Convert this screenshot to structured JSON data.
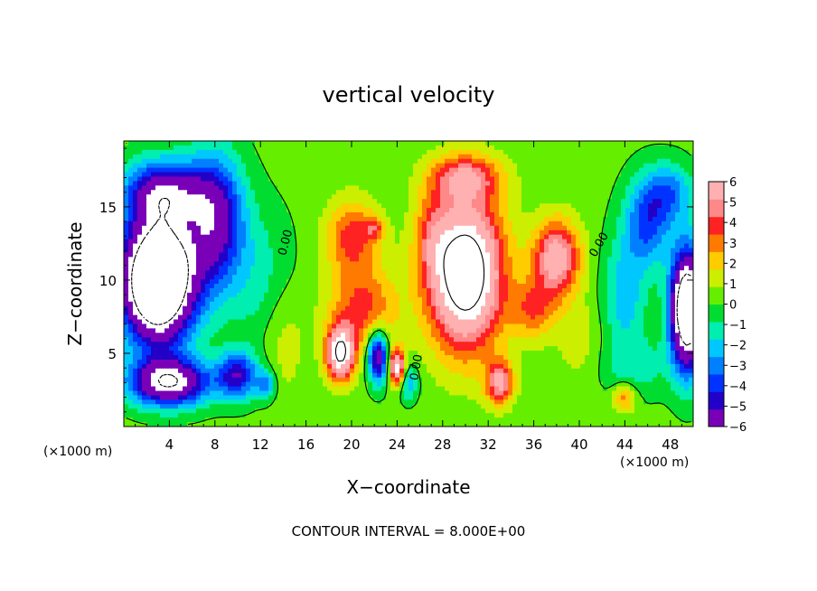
{
  "chart_data": {
    "type": "heatmap",
    "title": "vertical velocity",
    "xlabel": "X−coordinate",
    "ylabel": "Z−coordinate",
    "x_unit_left": "(×1000 m)",
    "x_unit_right": "(×1000 m)",
    "footer": "CONTOUR INTERVAL = 8.000E+00",
    "xlim": [
      0,
      50
    ],
    "ylim": [
      0,
      19.5
    ],
    "x_ticks": [
      4,
      8,
      12,
      16,
      20,
      24,
      28,
      32,
      36,
      40,
      44,
      48
    ],
    "x_tick_labels": [
      "4",
      "8",
      "12",
      "16",
      "20",
      "24",
      "28",
      "32",
      "36",
      "40",
      "44",
      "48"
    ],
    "y_ticks": [
      5,
      10,
      15
    ],
    "y_tick_labels": [
      "5",
      "10",
      "15"
    ],
    "colorbar": {
      "min": -6,
      "max": 6,
      "ticks": [
        6,
        5,
        4,
        3,
        2,
        1,
        0,
        -1,
        -2,
        -3,
        -4,
        -5,
        -6
      ],
      "tick_labels": [
        "6",
        "5",
        "4",
        "3",
        "2",
        "1",
        "0",
        "−1",
        "−2",
        "−3",
        "−4",
        "−5",
        "−6"
      ],
      "over_range_color": "#ffffff",
      "colors": [
        "#7a00b8",
        "#2200c8",
        "#0033ff",
        "#0080ff",
        "#00c8ff",
        "#00eeb0",
        "#00dd30",
        "#66ee00",
        "#ccee00",
        "#ffcc00",
        "#ff7a00",
        "#ff2222",
        "#ff8888",
        "#ffb0b0"
      ]
    },
    "background_value": 0.3,
    "features": [
      {
        "x": 3.5,
        "z": 16,
        "sx": 3.5,
        "sz": 2.2,
        "amp": -6
      },
      {
        "x": 3.0,
        "z": 10,
        "sx": 3.2,
        "sz": 4.2,
        "amp": -14
      },
      {
        "x": 8.0,
        "z": 14,
        "sx": 2.5,
        "sz": 4.5,
        "amp": -6
      },
      {
        "x": 4.0,
        "z": 3,
        "sx": 3.5,
        "sz": 1.6,
        "amp": -8
      },
      {
        "x": 10.0,
        "z": 3.5,
        "sx": 1.8,
        "sz": 1.6,
        "amp": -5
      },
      {
        "x": 12.5,
        "z": 2.8,
        "sx": 0.8,
        "sz": 1.0,
        "amp": -3
      },
      {
        "x": 14.0,
        "z": 6,
        "sx": 2.0,
        "sz": 4.0,
        "amp": 1.2
      },
      {
        "x": 12.0,
        "z": 10,
        "sx": 3.0,
        "sz": 5.0,
        "amp": -1.5
      },
      {
        "x": 20.0,
        "z": 13,
        "sx": 2.2,
        "sz": 2.5,
        "amp": 3.5
      },
      {
        "x": 22.0,
        "z": 13.5,
        "sx": 1.0,
        "sz": 0.8,
        "amp": 2.5
      },
      {
        "x": 21.0,
        "z": 8,
        "sx": 3.0,
        "sz": 3.0,
        "amp": 3.5
      },
      {
        "x": 19.0,
        "z": 5,
        "sx": 1.2,
        "sz": 1.8,
        "amp": 8
      },
      {
        "x": 22.3,
        "z": 4.8,
        "sx": 0.9,
        "sz": 1.8,
        "amp": -7
      },
      {
        "x": 24.0,
        "z": 4,
        "sx": 0.7,
        "sz": 1.2,
        "amp": 7
      },
      {
        "x": 25.0,
        "z": 3,
        "sx": 0.8,
        "sz": 1.2,
        "amp": -3
      },
      {
        "x": 30.0,
        "z": 10.5,
        "sx": 3.2,
        "sz": 5.0,
        "amp": 10
      },
      {
        "x": 30.0,
        "z": 17,
        "sx": 3.0,
        "sz": 1.5,
        "amp": 4
      },
      {
        "x": 27.0,
        "z": 13,
        "sx": 1.5,
        "sz": 3.0,
        "amp": 2
      },
      {
        "x": 33.0,
        "z": 3,
        "sx": 1.2,
        "sz": 1.5,
        "amp": 5
      },
      {
        "x": 38.0,
        "z": 11.5,
        "sx": 2.0,
        "sz": 2.5,
        "amp": 6
      },
      {
        "x": 36.0,
        "z": 8,
        "sx": 2.0,
        "sz": 2.0,
        "amp": 3
      },
      {
        "x": 40.0,
        "z": 6,
        "sx": 2.0,
        "sz": 3.0,
        "amp": 1
      },
      {
        "x": 44.0,
        "z": 9,
        "sx": 2.0,
        "sz": 4.0,
        "amp": -2.5
      },
      {
        "x": 46.0,
        "z": 14,
        "sx": 2.0,
        "sz": 3.0,
        "amp": -4
      },
      {
        "x": 48.0,
        "z": 16,
        "sx": 2.0,
        "sz": 2.0,
        "amp": -3
      },
      {
        "x": 49.5,
        "z": 8,
        "sx": 1.5,
        "sz": 4.0,
        "amp": -12
      },
      {
        "x": 44.0,
        "z": 2,
        "sx": 1.0,
        "sz": 1.0,
        "amp": 3
      },
      {
        "x": 45.0,
        "z": 4,
        "sx": 3.0,
        "sz": 2.0,
        "amp": -1.5
      }
    ],
    "contour_labels": [
      {
        "text": "0.00",
        "x": 14.5,
        "z": 12.5,
        "angle": -75
      },
      {
        "text": "0.00",
        "x": 42.0,
        "z": 12.3,
        "angle": -60
      },
      {
        "text": "0.00",
        "x": 26.0,
        "z": 4.0,
        "angle": -80
      }
    ]
  }
}
